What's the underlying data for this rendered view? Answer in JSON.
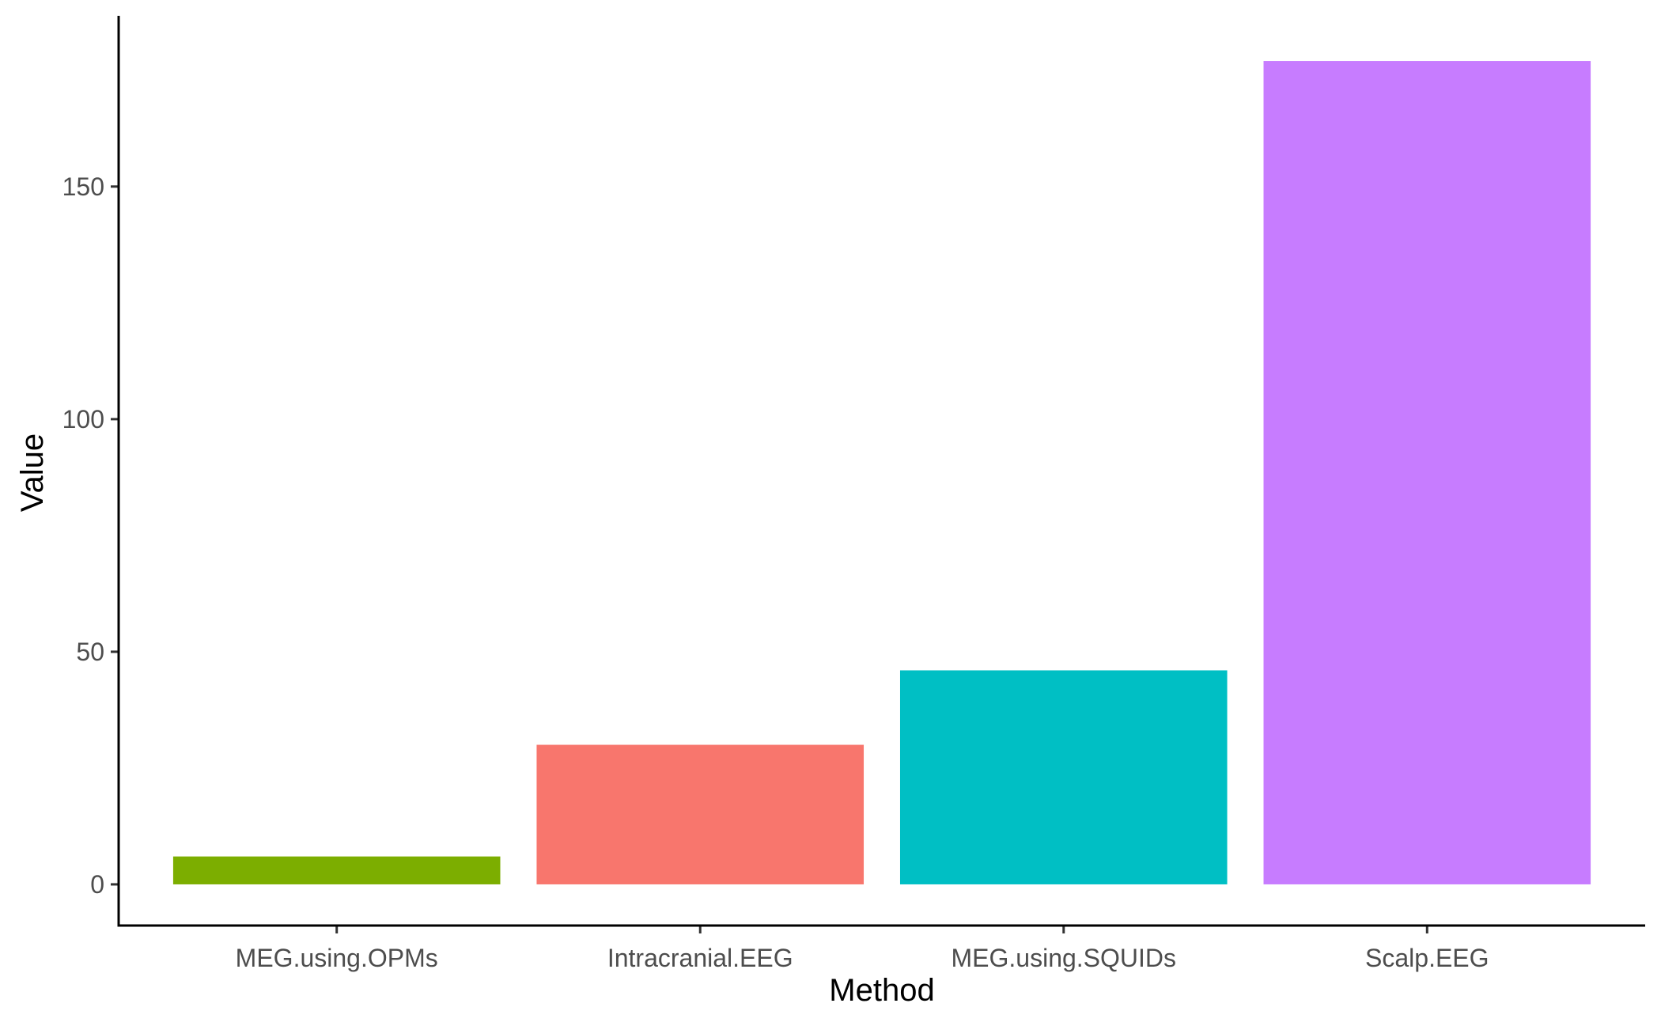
{
  "chart_data": {
    "type": "bar",
    "categories": [
      "MEG.using.OPMs",
      "Intracranial.EEG",
      "MEG.using.SQUIDs",
      "Scalp.EEG"
    ],
    "values": [
      6,
      30,
      46,
      177
    ],
    "colors": [
      "#7CAE00",
      "#F8766D",
      "#00BFC4",
      "#C77CFF"
    ],
    "title": "",
    "xlabel": "Method",
    "ylabel": "Value",
    "yticks": [
      0,
      50,
      100,
      150
    ],
    "ylim": [
      -8.85,
      185.85
    ],
    "grid": false,
    "legend": "none"
  }
}
